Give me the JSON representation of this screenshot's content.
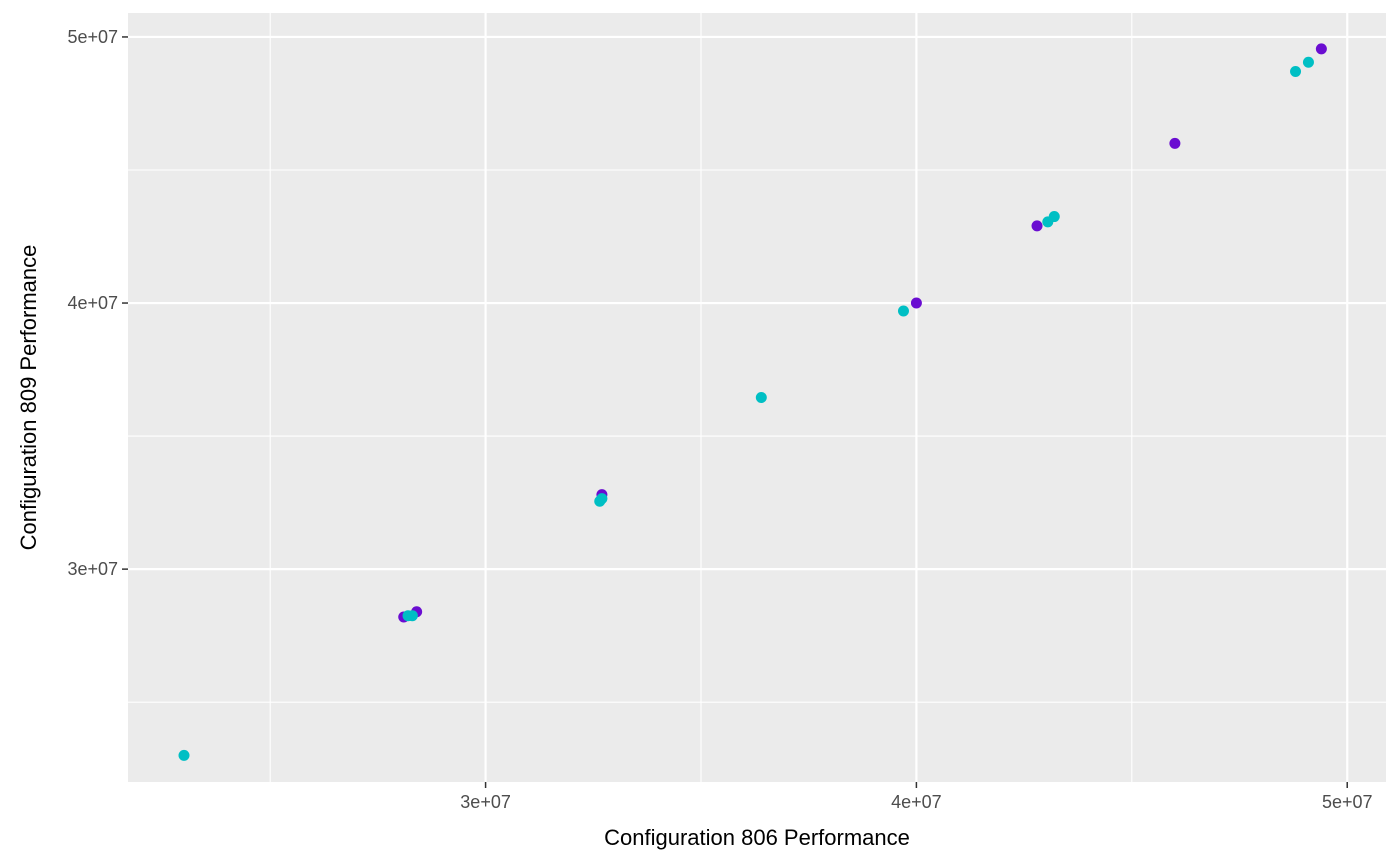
{
  "chart_data": {
    "type": "scatter",
    "xlabel": "Configuration 806 Performance",
    "ylabel": "Configuration 809 Performance",
    "xlim": [
      21700000,
      50900000
    ],
    "ylim": [
      22000000,
      50900000
    ],
    "x_major_ticks": [
      30000000,
      40000000,
      50000000
    ],
    "x_minor_ticks": [
      25000000,
      35000000,
      45000000
    ],
    "y_major_ticks": [
      30000000,
      40000000,
      50000000
    ],
    "y_minor_ticks": [
      25000000,
      35000000,
      45000000
    ],
    "x_tick_labels": [
      "3e+07",
      "4e+07",
      "5e+07"
    ],
    "y_tick_labels": [
      "3e+07",
      "4e+07",
      "5e+07"
    ],
    "grid": true,
    "legend": "none",
    "series": [
      {
        "color": "#6a0dd1",
        "points": [
          [
            28100000,
            28200000
          ],
          [
            28400000,
            28400000
          ],
          [
            32700000,
            32800000
          ],
          [
            40000000,
            40000000
          ],
          [
            42800000,
            42900000
          ],
          [
            46000000,
            46000000
          ],
          [
            49400000,
            49550000
          ]
        ]
      },
      {
        "color": "#00bfc4",
        "points": [
          [
            23000000,
            23000000
          ],
          [
            28200000,
            28250000
          ],
          [
            28300000,
            28250000
          ],
          [
            32650000,
            32550000
          ],
          [
            32700000,
            32650000
          ],
          [
            36400000,
            36450000
          ],
          [
            39700000,
            39700000
          ],
          [
            43050000,
            43050000
          ],
          [
            43200000,
            43250000
          ],
          [
            48800000,
            48700000
          ],
          [
            49100000,
            49050000
          ]
        ]
      }
    ]
  }
}
